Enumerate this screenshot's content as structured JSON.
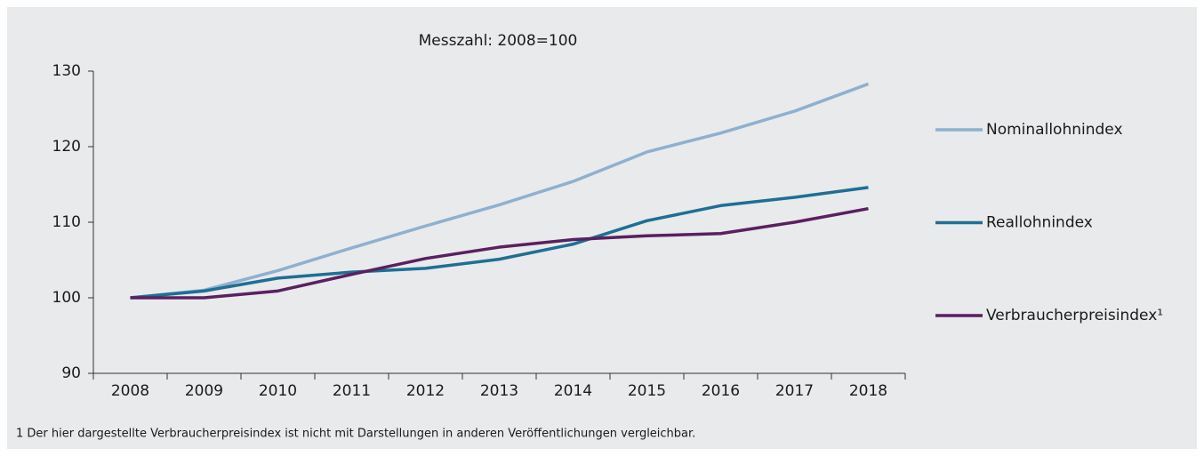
{
  "chart_data": {
    "type": "line",
    "title": "Messzahl: 2008=100",
    "categories": [
      "2008",
      "2009",
      "2010",
      "2011",
      "2012",
      "2013",
      "2014",
      "2015",
      "2016",
      "2017",
      "2018"
    ],
    "series": [
      {
        "name": "Nominallohnindex",
        "color": "#8fb0d0",
        "values": [
          100,
          101,
          103.6,
          106.6,
          109.5,
          112.3,
          115.4,
          119.3,
          121.8,
          124.7,
          128.3
        ]
      },
      {
        "name": "Reallohnindex",
        "color": "#1e6f94",
        "values": [
          100,
          100.9,
          102.6,
          103.4,
          103.9,
          105.1,
          107.1,
          110.2,
          112.2,
          113.3,
          114.6
        ]
      },
      {
        "name": "Verbraucherpreisindex¹",
        "color": "#5a2060",
        "values": [
          100,
          100,
          100.9,
          103.1,
          105.2,
          106.7,
          107.7,
          108.2,
          108.5,
          110,
          111.8
        ]
      }
    ],
    "ylim": [
      90,
      130
    ],
    "yticks": [
      90,
      100,
      110,
      120,
      130
    ],
    "grid": false,
    "legend": "right",
    "footnote": "1 Der hier dargestellte Verbraucherpreisindex ist nicht mit Darstellungen in anderen Veröffentlichungen vergleichbar."
  }
}
